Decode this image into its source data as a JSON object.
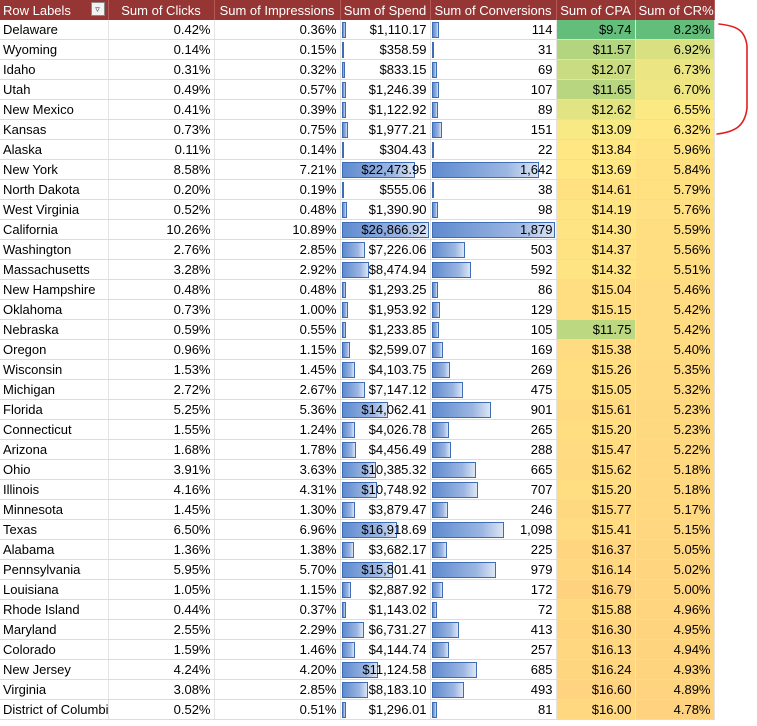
{
  "headers": {
    "row_labels": "Row Labels",
    "clicks": "Sum of Clicks",
    "impressions": "Sum of Impressions",
    "spend": "Sum of Spend",
    "conversions": "Sum of Conversions",
    "cpa": "Sum of CPA",
    "cr": "Sum of CR%"
  },
  "icons": {
    "filter": "filter-sort-icon"
  },
  "colors": {
    "header_bg": "#963634",
    "annotation": "#e02020",
    "bar": "#5f8bcf",
    "scale_green": "#63be7b",
    "scale_yellow": "#ffeb84",
    "scale_orange": "#ffd27f"
  },
  "rows": [
    {
      "state": "Delaware",
      "clicks": "0.42%",
      "impressions": "0.36%",
      "spend": "$1,110.17",
      "conversions": "114",
      "cpa": "$9.74",
      "cr": "8.23%",
      "spend_value": 1110.17,
      "conv_value": 114,
      "cpa_value": 9.74,
      "cr_value": 8.23
    },
    {
      "state": "Wyoming",
      "clicks": "0.14%",
      "impressions": "0.15%",
      "spend": "$358.59",
      "conversions": "31",
      "cpa": "$11.57",
      "cr": "6.92%",
      "spend_value": 358.59,
      "conv_value": 31,
      "cpa_value": 11.57,
      "cr_value": 6.92
    },
    {
      "state": "Idaho",
      "clicks": "0.31%",
      "impressions": "0.32%",
      "spend": "$833.15",
      "conversions": "69",
      "cpa": "$12.07",
      "cr": "6.73%",
      "spend_value": 833.15,
      "conv_value": 69,
      "cpa_value": 12.07,
      "cr_value": 6.73
    },
    {
      "state": "Utah",
      "clicks": "0.49%",
      "impressions": "0.57%",
      "spend": "$1,246.39",
      "conversions": "107",
      "cpa": "$11.65",
      "cr": "6.70%",
      "spend_value": 1246.39,
      "conv_value": 107,
      "cpa_value": 11.65,
      "cr_value": 6.7
    },
    {
      "state": "New Mexico",
      "clicks": "0.41%",
      "impressions": "0.39%",
      "spend": "$1,122.92",
      "conversions": "89",
      "cpa": "$12.62",
      "cr": "6.55%",
      "spend_value": 1122.92,
      "conv_value": 89,
      "cpa_value": 12.62,
      "cr_value": 6.55
    },
    {
      "state": "Kansas",
      "clicks": "0.73%",
      "impressions": "0.75%",
      "spend": "$1,977.21",
      "conversions": "151",
      "cpa": "$13.09",
      "cr": "6.32%",
      "spend_value": 1977.21,
      "conv_value": 151,
      "cpa_value": 13.09,
      "cr_value": 6.32
    },
    {
      "state": "Alaska",
      "clicks": "0.11%",
      "impressions": "0.14%",
      "spend": "$304.43",
      "conversions": "22",
      "cpa": "$13.84",
      "cr": "5.96%",
      "spend_value": 304.43,
      "conv_value": 22,
      "cpa_value": 13.84,
      "cr_value": 5.96
    },
    {
      "state": "New York",
      "clicks": "8.58%",
      "impressions": "7.21%",
      "spend": "$22,473.95",
      "conversions": "1,642",
      "cpa": "$13.69",
      "cr": "5.84%",
      "spend_value": 22473.95,
      "conv_value": 1642,
      "cpa_value": 13.69,
      "cr_value": 5.84
    },
    {
      "state": "North Dakota",
      "clicks": "0.20%",
      "impressions": "0.19%",
      "spend": "$555.06",
      "conversions": "38",
      "cpa": "$14.61",
      "cr": "5.79%",
      "spend_value": 555.06,
      "conv_value": 38,
      "cpa_value": 14.61,
      "cr_value": 5.79
    },
    {
      "state": "West Virginia",
      "clicks": "0.52%",
      "impressions": "0.48%",
      "spend": "$1,390.90",
      "conversions": "98",
      "cpa": "$14.19",
      "cr": "5.76%",
      "spend_value": 1390.9,
      "conv_value": 98,
      "cpa_value": 14.19,
      "cr_value": 5.76
    },
    {
      "state": "California",
      "clicks": "10.26%",
      "impressions": "10.89%",
      "spend": "$26,866.92",
      "conversions": "1,879",
      "cpa": "$14.30",
      "cr": "5.59%",
      "spend_value": 26866.92,
      "conv_value": 1879,
      "cpa_value": 14.3,
      "cr_value": 5.59
    },
    {
      "state": "Washington",
      "clicks": "2.76%",
      "impressions": "2.85%",
      "spend": "$7,226.06",
      "conversions": "503",
      "cpa": "$14.37",
      "cr": "5.56%",
      "spend_value": 7226.06,
      "conv_value": 503,
      "cpa_value": 14.37,
      "cr_value": 5.56
    },
    {
      "state": "Massachusetts",
      "clicks": "3.28%",
      "impressions": "2.92%",
      "spend": "$8,474.94",
      "conversions": "592",
      "cpa": "$14.32",
      "cr": "5.51%",
      "spend_value": 8474.94,
      "conv_value": 592,
      "cpa_value": 14.32,
      "cr_value": 5.51
    },
    {
      "state": "New Hampshire",
      "clicks": "0.48%",
      "impressions": "0.48%",
      "spend": "$1,293.25",
      "conversions": "86",
      "cpa": "$15.04",
      "cr": "5.46%",
      "spend_value": 1293.25,
      "conv_value": 86,
      "cpa_value": 15.04,
      "cr_value": 5.46
    },
    {
      "state": "Oklahoma",
      "clicks": "0.73%",
      "impressions": "1.00%",
      "spend": "$1,953.92",
      "conversions": "129",
      "cpa": "$15.15",
      "cr": "5.42%",
      "spend_value": 1953.92,
      "conv_value": 129,
      "cpa_value": 15.15,
      "cr_value": 5.42
    },
    {
      "state": "Nebraska",
      "clicks": "0.59%",
      "impressions": "0.55%",
      "spend": "$1,233.85",
      "conversions": "105",
      "cpa": "$11.75",
      "cr": "5.42%",
      "spend_value": 1233.85,
      "conv_value": 105,
      "cpa_value": 11.75,
      "cr_value": 5.42
    },
    {
      "state": "Oregon",
      "clicks": "0.96%",
      "impressions": "1.15%",
      "spend": "$2,599.07",
      "conversions": "169",
      "cpa": "$15.38",
      "cr": "5.40%",
      "spend_value": 2599.07,
      "conv_value": 169,
      "cpa_value": 15.38,
      "cr_value": 5.4
    },
    {
      "state": "Wisconsin",
      "clicks": "1.53%",
      "impressions": "1.45%",
      "spend": "$4,103.75",
      "conversions": "269",
      "cpa": "$15.26",
      "cr": "5.35%",
      "spend_value": 4103.75,
      "conv_value": 269,
      "cpa_value": 15.26,
      "cr_value": 5.35
    },
    {
      "state": "Michigan",
      "clicks": "2.72%",
      "impressions": "2.67%",
      "spend": "$7,147.12",
      "conversions": "475",
      "cpa": "$15.05",
      "cr": "5.32%",
      "spend_value": 7147.12,
      "conv_value": 475,
      "cpa_value": 15.05,
      "cr_value": 5.32
    },
    {
      "state": "Florida",
      "clicks": "5.25%",
      "impressions": "5.36%",
      "spend": "$14,062.41",
      "conversions": "901",
      "cpa": "$15.61",
      "cr": "5.23%",
      "spend_value": 14062.41,
      "conv_value": 901,
      "cpa_value": 15.61,
      "cr_value": 5.23
    },
    {
      "state": "Connecticut",
      "clicks": "1.55%",
      "impressions": "1.24%",
      "spend": "$4,026.78",
      "conversions": "265",
      "cpa": "$15.20",
      "cr": "5.23%",
      "spend_value": 4026.78,
      "conv_value": 265,
      "cpa_value": 15.2,
      "cr_value": 5.23
    },
    {
      "state": "Arizona",
      "clicks": "1.68%",
      "impressions": "1.78%",
      "spend": "$4,456.49",
      "conversions": "288",
      "cpa": "$15.47",
      "cr": "5.22%",
      "spend_value": 4456.49,
      "conv_value": 288,
      "cpa_value": 15.47,
      "cr_value": 5.22
    },
    {
      "state": "Ohio",
      "clicks": "3.91%",
      "impressions": "3.63%",
      "spend": "$10,385.32",
      "conversions": "665",
      "cpa": "$15.62",
      "cr": "5.18%",
      "spend_value": 10385.32,
      "conv_value": 665,
      "cpa_value": 15.62,
      "cr_value": 5.18
    },
    {
      "state": "Illinois",
      "clicks": "4.16%",
      "impressions": "4.31%",
      "spend": "$10,748.92",
      "conversions": "707",
      "cpa": "$15.20",
      "cr": "5.18%",
      "spend_value": 10748.92,
      "conv_value": 707,
      "cpa_value": 15.2,
      "cr_value": 5.18
    },
    {
      "state": "Minnesota",
      "clicks": "1.45%",
      "impressions": "1.30%",
      "spend": "$3,879.47",
      "conversions": "246",
      "cpa": "$15.77",
      "cr": "5.17%",
      "spend_value": 3879.47,
      "conv_value": 246,
      "cpa_value": 15.77,
      "cr_value": 5.17
    },
    {
      "state": "Texas",
      "clicks": "6.50%",
      "impressions": "6.96%",
      "spend": "$16,918.69",
      "conversions": "1,098",
      "cpa": "$15.41",
      "cr": "5.15%",
      "spend_value": 16918.69,
      "conv_value": 1098,
      "cpa_value": 15.41,
      "cr_value": 5.15
    },
    {
      "state": "Alabama",
      "clicks": "1.36%",
      "impressions": "1.38%",
      "spend": "$3,682.17",
      "conversions": "225",
      "cpa": "$16.37",
      "cr": "5.05%",
      "spend_value": 3682.17,
      "conv_value": 225,
      "cpa_value": 16.37,
      "cr_value": 5.05
    },
    {
      "state": "Pennsylvania",
      "clicks": "5.95%",
      "impressions": "5.70%",
      "spend": "$15,801.41",
      "conversions": "979",
      "cpa": "$16.14",
      "cr": "5.02%",
      "spend_value": 15801.41,
      "conv_value": 979,
      "cpa_value": 16.14,
      "cr_value": 5.02
    },
    {
      "state": "Louisiana",
      "clicks": "1.05%",
      "impressions": "1.15%",
      "spend": "$2,887.92",
      "conversions": "172",
      "cpa": "$16.79",
      "cr": "5.00%",
      "spend_value": 2887.92,
      "conv_value": 172,
      "cpa_value": 16.79,
      "cr_value": 5.0
    },
    {
      "state": "Rhode Island",
      "clicks": "0.44%",
      "impressions": "0.37%",
      "spend": "$1,143.02",
      "conversions": "72",
      "cpa": "$15.88",
      "cr": "4.96%",
      "spend_value": 1143.02,
      "conv_value": 72,
      "cpa_value": 15.88,
      "cr_value": 4.96
    },
    {
      "state": "Maryland",
      "clicks": "2.55%",
      "impressions": "2.29%",
      "spend": "$6,731.27",
      "conversions": "413",
      "cpa": "$16.30",
      "cr": "4.95%",
      "spend_value": 6731.27,
      "conv_value": 413,
      "cpa_value": 16.3,
      "cr_value": 4.95
    },
    {
      "state": "Colorado",
      "clicks": "1.59%",
      "impressions": "1.46%",
      "spend": "$4,144.74",
      "conversions": "257",
      "cpa": "$16.13",
      "cr": "4.94%",
      "spend_value": 4144.74,
      "conv_value": 257,
      "cpa_value": 16.13,
      "cr_value": 4.94
    },
    {
      "state": "New Jersey",
      "clicks": "4.24%",
      "impressions": "4.20%",
      "spend": "$11,124.58",
      "conversions": "685",
      "cpa": "$16.24",
      "cr": "4.93%",
      "spend_value": 11124.58,
      "conv_value": 685,
      "cpa_value": 16.24,
      "cr_value": 4.93
    },
    {
      "state": "Virginia",
      "clicks": "3.08%",
      "impressions": "2.85%",
      "spend": "$8,183.10",
      "conversions": "493",
      "cpa": "$16.60",
      "cr": "4.89%",
      "spend_value": 8183.1,
      "conv_value": 493,
      "cpa_value": 16.6,
      "cr_value": 4.89
    },
    {
      "state": "District of Columbia",
      "clicks": "0.52%",
      "impressions": "0.51%",
      "spend": "$1,296.01",
      "conversions": "81",
      "cpa": "$16.00",
      "cr": "4.78%",
      "spend_value": 1296.01,
      "conv_value": 81,
      "cpa_value": 16.0,
      "cr_value": 4.78
    }
  ]
}
